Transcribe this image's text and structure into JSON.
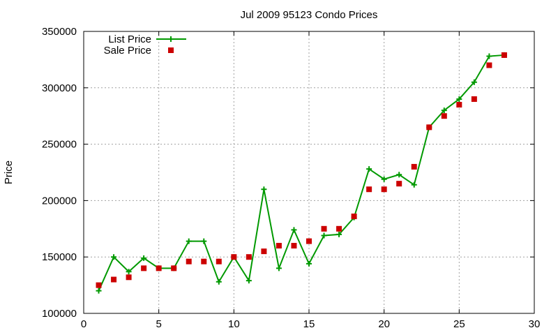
{
  "chart_data": {
    "type": "line",
    "title": "Jul 2009 95123 Condo Prices",
    "xlabel": "",
    "ylabel": "Price",
    "xlim": [
      0,
      30
    ],
    "ylim": [
      100000,
      350000
    ],
    "x_ticks": [
      0,
      5,
      10,
      15,
      20,
      25,
      30
    ],
    "y_ticks": [
      100000,
      150000,
      200000,
      250000,
      300000,
      350000
    ],
    "grid": true,
    "legend_position": "top-left",
    "series": [
      {
        "name": "List Price",
        "style": "line+cross",
        "color": "#009900",
        "x": [
          1,
          2,
          3,
          4,
          5,
          6,
          7,
          8,
          9,
          10,
          11,
          12,
          13,
          14,
          15,
          16,
          17,
          18,
          19,
          20,
          21,
          22,
          23,
          24,
          25,
          26,
          27,
          28
        ],
        "y": [
          120000,
          150000,
          137000,
          149000,
          140000,
          140000,
          164000,
          164000,
          128000,
          150000,
          129000,
          210000,
          140000,
          174000,
          144000,
          169000,
          170000,
          185000,
          228000,
          219000,
          223000,
          214000,
          265000,
          280000,
          290000,
          305000,
          328000,
          329000
        ]
      },
      {
        "name": "Sale Price",
        "style": "square",
        "color": "#cc0000",
        "x": [
          1,
          2,
          3,
          4,
          5,
          6,
          7,
          8,
          9,
          10,
          11,
          12,
          13,
          14,
          15,
          16,
          17,
          18,
          19,
          20,
          21,
          22,
          23,
          24,
          25,
          26,
          27,
          28
        ],
        "y": [
          125000,
          130000,
          132000,
          140000,
          140000,
          140000,
          146000,
          146000,
          146000,
          150000,
          150000,
          155000,
          160000,
          160000,
          164000,
          175000,
          175000,
          186000,
          210000,
          210000,
          215000,
          230000,
          265000,
          275000,
          285000,
          290000,
          320000,
          329000
        ]
      }
    ]
  }
}
